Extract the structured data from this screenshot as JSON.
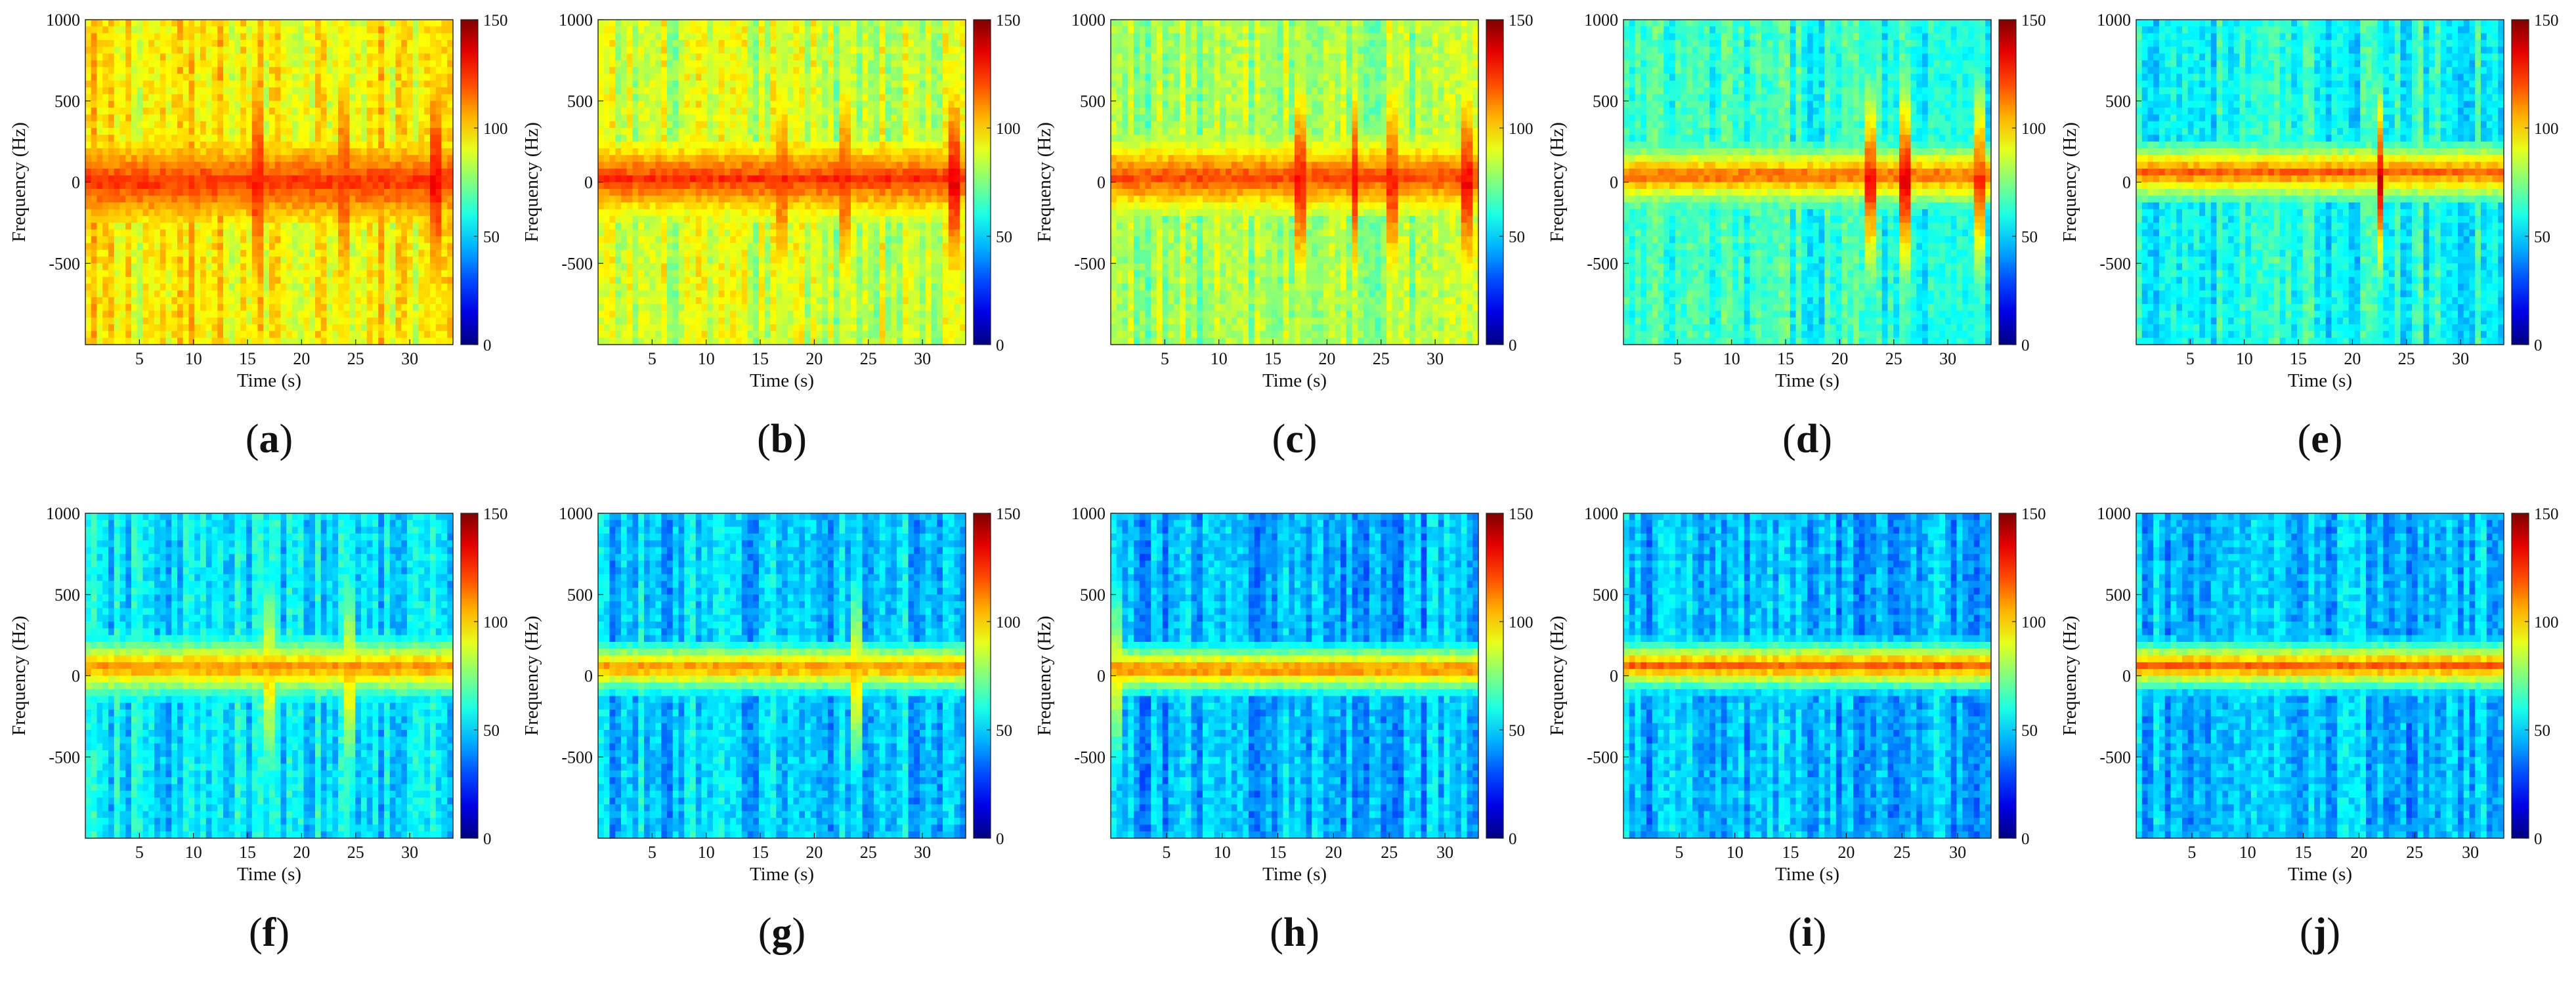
{
  "figure": {
    "panels": [
      {
        "id": "a",
        "label": "(a)",
        "xlabel": "Time (s)",
        "ylabel": "Frequency (Hz)",
        "xticks": [
          "5",
          "10",
          "15",
          "20",
          "25",
          "30"
        ],
        "yticks": [
          "1000",
          "500",
          "0",
          "-500"
        ],
        "cbar_ticks": [
          "150",
          "100",
          "50",
          "0"
        ]
      },
      {
        "id": "b",
        "label": "(b)",
        "xlabel": "Time (s)",
        "ylabel": "Frequency (Hz)",
        "xticks": [
          "5",
          "10",
          "15",
          "20",
          "25",
          "30"
        ],
        "yticks": [
          "1000",
          "500",
          "0",
          "-500"
        ],
        "cbar_ticks": [
          "150",
          "100",
          "50",
          "0"
        ]
      },
      {
        "id": "c",
        "label": "(c)",
        "xlabel": "Time (s)",
        "ylabel": "Frequency (Hz)",
        "xticks": [
          "5",
          "10",
          "15",
          "20",
          "25",
          "30"
        ],
        "yticks": [
          "1000",
          "500",
          "0",
          "-500"
        ],
        "cbar_ticks": [
          "150",
          "100",
          "50",
          "0"
        ]
      },
      {
        "id": "d",
        "label": "(d)",
        "xlabel": "Time (s)",
        "ylabel": "Frequency (Hz)",
        "xticks": [
          "5",
          "10",
          "15",
          "20",
          "25",
          "30"
        ],
        "yticks": [
          "1000",
          "500",
          "0",
          "-500"
        ],
        "cbar_ticks": [
          "150",
          "100",
          "50",
          "0"
        ]
      },
      {
        "id": "e",
        "label": "(e)",
        "xlabel": "Time (s)",
        "ylabel": "Frequency (Hz)",
        "xticks": [
          "5",
          "10",
          "15",
          "20",
          "25",
          "30"
        ],
        "yticks": [
          "1000",
          "500",
          "0",
          "-500"
        ],
        "cbar_ticks": [
          "150",
          "100",
          "50",
          "0"
        ]
      },
      {
        "id": "f",
        "label": "(f)",
        "xlabel": "Time (s)",
        "ylabel": "Frequency (Hz)",
        "xticks": [
          "5",
          "10",
          "15",
          "20",
          "25",
          "30"
        ],
        "yticks": [
          "1000",
          "500",
          "0",
          "-500"
        ],
        "cbar_ticks": [
          "150",
          "100",
          "50",
          "0"
        ]
      },
      {
        "id": "g",
        "label": "(g)",
        "xlabel": "Time (s)",
        "ylabel": "Frequency (Hz)",
        "xticks": [
          "5",
          "10",
          "15",
          "20",
          "25",
          "30"
        ],
        "yticks": [
          "1000",
          "500",
          "0",
          "-500"
        ],
        "cbar_ticks": [
          "150",
          "100",
          "50",
          "0"
        ]
      },
      {
        "id": "h",
        "label": "(h)",
        "xlabel": "Time (s)",
        "ylabel": "Frequency (Hz)",
        "xticks": [
          "5",
          "10",
          "15",
          "20",
          "25",
          "30"
        ],
        "yticks": [
          "1000",
          "500",
          "0",
          "-500"
        ],
        "cbar_ticks": [
          "150",
          "100",
          "50",
          "0"
        ]
      },
      {
        "id": "i",
        "label": "(i)",
        "xlabel": "Time (s)",
        "ylabel": "Frequency (Hz)",
        "xticks": [
          "5",
          "10",
          "15",
          "20",
          "25",
          "30"
        ],
        "yticks": [
          "1000",
          "500",
          "0",
          "-500"
        ],
        "cbar_ticks": [
          "150",
          "100",
          "50",
          "0"
        ]
      },
      {
        "id": "j",
        "label": "(j)",
        "xlabel": "Time (s)",
        "ylabel": "Frequency (Hz)",
        "xticks": [
          "5",
          "10",
          "15",
          "20",
          "25",
          "30"
        ],
        "yticks": [
          "1000",
          "500",
          "0",
          "-500"
        ],
        "cbar_ticks": [
          "150",
          "100",
          "50",
          "0"
        ]
      }
    ]
  },
  "chart_data": [
    {
      "id": "a",
      "type": "heatmap",
      "title": "",
      "xlabel": "Time (s)",
      "ylabel": "Frequency (Hz)",
      "xlim": [
        0,
        34
      ],
      "ylim": [
        -1000,
        1000
      ],
      "xticks": [
        5,
        10,
        15,
        20,
        25,
        30
      ],
      "yticks": [
        1000,
        500,
        0,
        -500
      ],
      "colorbar": {
        "range": [
          0,
          150
        ],
        "ticks": [
          0,
          50,
          100,
          150
        ],
        "colormap": "jet"
      },
      "background_level": 95,
      "ridge_level": 125,
      "ridge_center_hz": 0,
      "ridge_halfwidth_hz": 100,
      "bursts": [
        {
          "t": 16,
          "level": 128
        },
        {
          "t": 24,
          "level": 122
        },
        {
          "t": 32.5,
          "level": 132
        }
      ]
    },
    {
      "id": "b",
      "type": "heatmap",
      "title": "",
      "xlabel": "Time (s)",
      "ylabel": "Frequency (Hz)",
      "xlim": [
        0,
        34
      ],
      "ylim": [
        -1000,
        1000
      ],
      "xticks": [
        5,
        10,
        15,
        20,
        25,
        30
      ],
      "yticks": [
        1000,
        500,
        0,
        -500
      ],
      "colorbar": {
        "range": [
          0,
          150
        ],
        "ticks": [
          0,
          50,
          100,
          150
        ],
        "colormap": "jet"
      },
      "background_level": 85,
      "ridge_level": 125,
      "ridge_center_hz": 20,
      "ridge_halfwidth_hz": 100,
      "bursts": [
        {
          "t": 17,
          "level": 120
        },
        {
          "t": 23,
          "level": 122
        },
        {
          "t": 33,
          "level": 135
        }
      ]
    },
    {
      "id": "c",
      "type": "heatmap",
      "title": "",
      "xlabel": "Time (s)",
      "ylabel": "Frequency (Hz)",
      "xlim": [
        0,
        34
      ],
      "ylim": [
        -1000,
        1000
      ],
      "xticks": [
        5,
        10,
        15,
        20,
        25,
        30
      ],
      "yticks": [
        1000,
        500,
        0,
        -500
      ],
      "colorbar": {
        "range": [
          0,
          150
        ],
        "ticks": [
          0,
          50,
          100,
          150
        ],
        "colormap": "jet"
      },
      "background_level": 80,
      "ridge_level": 122,
      "ridge_center_hz": 30,
      "ridge_halfwidth_hz": 100,
      "bursts": [
        {
          "t": 17.5,
          "level": 130
        },
        {
          "t": 22.5,
          "level": 135
        },
        {
          "t": 26,
          "level": 128
        },
        {
          "t": 33,
          "level": 132
        }
      ]
    },
    {
      "id": "d",
      "type": "heatmap",
      "title": "",
      "xlabel": "Time (s)",
      "ylabel": "Frequency (Hz)",
      "xlim": [
        0,
        34
      ],
      "ylim": [
        -1000,
        1000
      ],
      "xticks": [
        5,
        10,
        15,
        20,
        25,
        30
      ],
      "yticks": [
        1000,
        500,
        0,
        -500
      ],
      "colorbar": {
        "range": [
          0,
          150
        ],
        "ticks": [
          0,
          50,
          100,
          150
        ],
        "colormap": "jet"
      },
      "background_level": 62,
      "ridge_level": 118,
      "ridge_center_hz": 40,
      "ridge_halfwidth_hz": 80,
      "bursts": [
        {
          "t": 23,
          "level": 130
        },
        {
          "t": 26,
          "level": 138
        },
        {
          "t": 33,
          "level": 125
        }
      ]
    },
    {
      "id": "e",
      "type": "heatmap",
      "title": "",
      "xlabel": "Time (s)",
      "ylabel": "Frequency (Hz)",
      "xlim": [
        0,
        34
      ],
      "ylim": [
        -1000,
        1000
      ],
      "xticks": [
        5,
        10,
        15,
        20,
        25,
        30
      ],
      "yticks": [
        1000,
        500,
        0,
        -500
      ],
      "colorbar": {
        "range": [
          0,
          150
        ],
        "ticks": [
          0,
          50,
          100,
          150
        ],
        "colormap": "jet"
      },
      "background_level": 58,
      "ridge_level": 118,
      "ridge_center_hz": 60,
      "ridge_halfwidth_hz": 80,
      "bursts": [
        {
          "t": 22.5,
          "level": 140
        }
      ]
    },
    {
      "id": "f",
      "type": "heatmap",
      "title": "",
      "xlabel": "Time (s)",
      "ylabel": "Frequency (Hz)",
      "xlim": [
        0,
        34
      ],
      "ylim": [
        -1000,
        1000
      ],
      "xticks": [
        5,
        10,
        15,
        20,
        25,
        30
      ],
      "yticks": [
        1000,
        500,
        0,
        -500
      ],
      "colorbar": {
        "range": [
          0,
          150
        ],
        "ticks": [
          0,
          50,
          100,
          150
        ],
        "colormap": "jet"
      },
      "background_level": 52,
      "ridge_level": 112,
      "ridge_center_hz": 50,
      "ridge_halfwidth_hz": 80,
      "bursts": [
        {
          "t": 17,
          "level": 100
        },
        {
          "t": 24.5,
          "level": 100
        }
      ]
    },
    {
      "id": "g",
      "type": "heatmap",
      "title": "",
      "xlabel": "Time (s)",
      "ylabel": "Frequency (Hz)",
      "xlim": [
        0,
        34
      ],
      "ylim": [
        -1000,
        1000
      ],
      "xticks": [
        5,
        10,
        15,
        20,
        25,
        30
      ],
      "yticks": [
        1000,
        500,
        0,
        -500
      ],
      "colorbar": {
        "range": [
          0,
          150
        ],
        "ticks": [
          0,
          50,
          100,
          150
        ],
        "colormap": "jet"
      },
      "background_level": 48,
      "ridge_level": 112,
      "ridge_center_hz": 50,
      "ridge_halfwidth_hz": 70,
      "bursts": [
        {
          "t": 24,
          "level": 100
        }
      ]
    },
    {
      "id": "h",
      "type": "heatmap",
      "title": "",
      "xlabel": "Time (s)",
      "ylabel": "Frequency (Hz)",
      "xlim": [
        0,
        33
      ],
      "ylim": [
        -1000,
        1000
      ],
      "xticks": [
        5,
        10,
        15,
        20,
        25,
        30
      ],
      "yticks": [
        1000,
        500,
        0,
        -500
      ],
      "colorbar": {
        "range": [
          0,
          150
        ],
        "ticks": [
          0,
          50,
          100,
          150
        ],
        "colormap": "jet"
      },
      "background_level": 45,
      "ridge_level": 115,
      "ridge_center_hz": 40,
      "ridge_halfwidth_hz": 70,
      "bursts": [
        {
          "t": 0.5,
          "level": 95
        }
      ]
    },
    {
      "id": "i",
      "type": "heatmap",
      "title": "",
      "xlabel": "Time (s)",
      "ylabel": "Frequency (Hz)",
      "xlim": [
        0,
        33
      ],
      "ylim": [
        -1000,
        1000
      ],
      "xticks": [
        5,
        10,
        15,
        20,
        25,
        30
      ],
      "yticks": [
        1000,
        500,
        0,
        -500
      ],
      "colorbar": {
        "range": [
          0,
          150
        ],
        "ticks": [
          0,
          50,
          100,
          150
        ],
        "colormap": "jet"
      },
      "background_level": 45,
      "ridge_level": 118,
      "ridge_center_hz": 60,
      "ridge_halfwidth_hz": 70,
      "bursts": []
    },
    {
      "id": "j",
      "type": "heatmap",
      "title": "",
      "xlabel": "Time (s)",
      "ylabel": "Frequency (Hz)",
      "xlim": [
        0,
        33
      ],
      "ylim": [
        -1000,
        1000
      ],
      "xticks": [
        5,
        10,
        15,
        20,
        25,
        30
      ],
      "yticks": [
        1000,
        500,
        0,
        -500
      ],
      "colorbar": {
        "range": [
          0,
          150
        ],
        "ticks": [
          0,
          50,
          100,
          150
        ],
        "colormap": "jet"
      },
      "background_level": 45,
      "ridge_level": 118,
      "ridge_center_hz": 60,
      "ridge_halfwidth_hz": 70,
      "bursts": []
    }
  ]
}
